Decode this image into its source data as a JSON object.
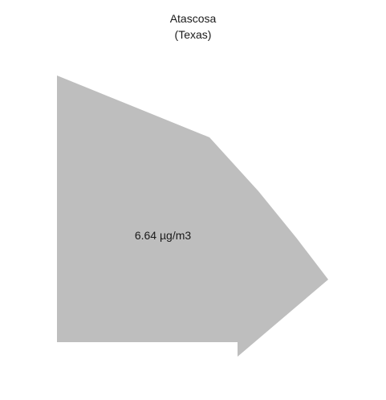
{
  "map": {
    "title": "Atascosa",
    "subtitle": "(Texas)",
    "region": {
      "name": "Atascosa",
      "value_label": "6.64 µg/m3",
      "fill_color": "#bebebe",
      "text_color": "#1a1a1a"
    }
  }
}
